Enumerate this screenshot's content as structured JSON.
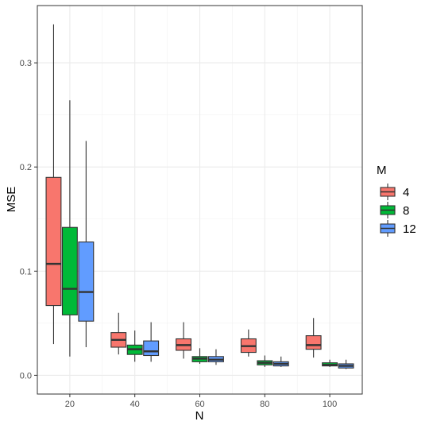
{
  "chart_data": {
    "type": "boxplot",
    "xlabel": "N",
    "ylabel": "MSE",
    "x_ticks": [
      20,
      40,
      60,
      80,
      100
    ],
    "y_ticks": [
      0.0,
      0.1,
      0.2,
      0.3
    ],
    "y_tick_labels": [
      "0.0",
      "0.1",
      "0.2",
      "0.3"
    ],
    "ylim": [
      -0.018,
      0.355
    ],
    "xlim": [
      10,
      110
    ],
    "grid": true,
    "legend": {
      "title": "M",
      "position": "right",
      "entries": [
        "4",
        "8",
        "12"
      ]
    },
    "series": [
      {
        "name": "4",
        "color": "#F8766D",
        "boxes": [
          {
            "x": 20,
            "min": 0.03,
            "q1": 0.067,
            "median": 0.107,
            "q3": 0.19,
            "max": 0.337
          },
          {
            "x": 40,
            "min": 0.02,
            "q1": 0.027,
            "median": 0.034,
            "q3": 0.041,
            "max": 0.06
          },
          {
            "x": 60,
            "min": 0.016,
            "q1": 0.024,
            "median": 0.029,
            "q3": 0.035,
            "max": 0.051
          },
          {
            "x": 80,
            "min": 0.018,
            "q1": 0.022,
            "median": 0.028,
            "q3": 0.035,
            "max": 0.044
          },
          {
            "x": 100,
            "min": 0.017,
            "q1": 0.025,
            "median": 0.029,
            "q3": 0.038,
            "max": 0.055
          }
        ]
      },
      {
        "name": "8",
        "color": "#00BA38",
        "boxes": [
          {
            "x": 20,
            "min": 0.018,
            "q1": 0.058,
            "median": 0.083,
            "q3": 0.142,
            "max": 0.264
          },
          {
            "x": 40,
            "min": 0.013,
            "q1": 0.02,
            "median": 0.025,
            "q3": 0.029,
            "max": 0.043
          },
          {
            "x": 60,
            "min": 0.011,
            "q1": 0.013,
            "median": 0.016,
            "q3": 0.018,
            "max": 0.026
          },
          {
            "x": 80,
            "min": 0.008,
            "q1": 0.01,
            "median": 0.012,
            "q3": 0.014,
            "max": 0.019
          },
          {
            "x": 100,
            "min": 0.008,
            "q1": 0.009,
            "median": 0.01,
            "q3": 0.012,
            "max": 0.015
          }
        ]
      },
      {
        "name": "12",
        "color": "#619CFF",
        "boxes": [
          {
            "x": 20,
            "min": 0.027,
            "q1": 0.052,
            "median": 0.08,
            "q3": 0.128,
            "max": 0.225
          },
          {
            "x": 40,
            "min": 0.013,
            "q1": 0.019,
            "median": 0.023,
            "q3": 0.033,
            "max": 0.051
          },
          {
            "x": 60,
            "min": 0.01,
            "q1": 0.013,
            "median": 0.015,
            "q3": 0.018,
            "max": 0.025
          },
          {
            "x": 80,
            "min": 0.008,
            "q1": 0.009,
            "median": 0.011,
            "q3": 0.013,
            "max": 0.018
          },
          {
            "x": 100,
            "min": 0.006,
            "q1": 0.007,
            "median": 0.009,
            "q3": 0.011,
            "max": 0.015
          }
        ]
      }
    ]
  }
}
